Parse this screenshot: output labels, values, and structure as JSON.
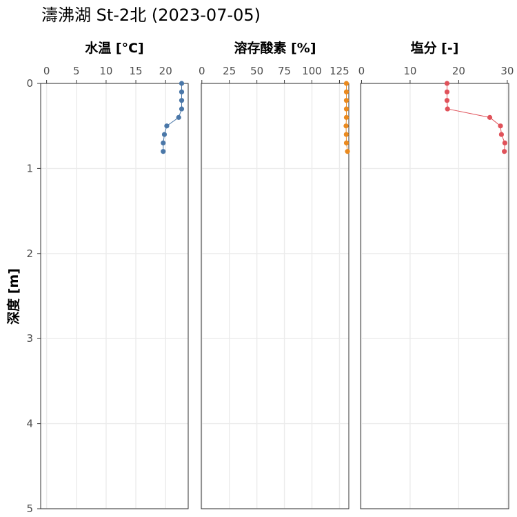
{
  "title": "濤沸湖 St-2北 (2023-07-05)",
  "y_axis": {
    "label": "深度 [m]",
    "ticks": [
      0,
      1,
      2,
      3,
      4,
      5
    ],
    "tick_labels": [
      "0",
      "1",
      "2",
      "3",
      "4",
      "5"
    ]
  },
  "chart_data": [
    {
      "type": "line",
      "title": "水温 [°C]",
      "xlim": [
        -1,
        23.8
      ],
      "ylim": [
        5,
        0
      ],
      "y_reversed": true,
      "grid": true,
      "x_ticks": [
        0,
        5,
        10,
        15,
        20
      ],
      "x_tick_labels": [
        "0",
        "5",
        "10",
        "15",
        "20"
      ],
      "color": "#4a77a8",
      "series": [
        {
          "x": [
            22.7,
            22.7,
            22.7,
            22.7,
            22.2,
            20.2,
            19.8,
            19.6,
            19.6
          ],
          "y": [
            0.0,
            0.1,
            0.2,
            0.3,
            0.4,
            0.5,
            0.6,
            0.7,
            0.8
          ]
        }
      ]
    },
    {
      "type": "line",
      "title": "溶存酸素 [%]",
      "xlim": [
        -0.5,
        133.5
      ],
      "ylim": [
        5,
        0
      ],
      "y_reversed": true,
      "grid": true,
      "x_ticks": [
        0,
        25,
        50,
        75,
        100,
        125
      ],
      "x_tick_labels": [
        "0",
        "25",
        "50",
        "75",
        "100",
        "125"
      ],
      "color": "#ea8a1f",
      "series": [
        {
          "x": [
            131.3,
            131.3,
            131.3,
            131.3,
            131.3,
            131.0,
            131.2,
            131.3,
            132.3
          ],
          "y": [
            0.0,
            0.1,
            0.2,
            0.3,
            0.4,
            0.5,
            0.6,
            0.7,
            0.8
          ]
        }
      ]
    },
    {
      "type": "line",
      "title": "塩分 [-]",
      "xlim": [
        -0.2,
        30.3
      ],
      "ylim": [
        5,
        0
      ],
      "y_reversed": true,
      "grid": true,
      "x_ticks": [
        0,
        10,
        20,
        30
      ],
      "x_tick_labels": [
        "0",
        "10",
        "20",
        "30"
      ],
      "color": "#e0525a",
      "series": [
        {
          "x": [
            17.6,
            17.6,
            17.6,
            17.7,
            26.4,
            28.6,
            28.8,
            29.5,
            29.4
          ],
          "y": [
            0.0,
            0.1,
            0.2,
            0.3,
            0.4,
            0.5,
            0.6,
            0.7,
            0.8
          ]
        }
      ]
    }
  ]
}
